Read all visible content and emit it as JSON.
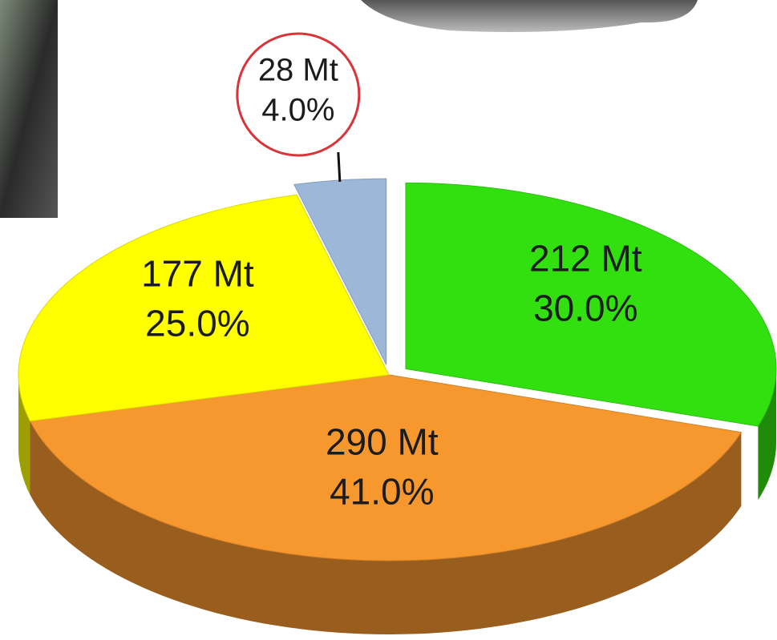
{
  "chart_data": {
    "type": "pie",
    "categories": [
      null,
      null,
      null,
      null
    ],
    "values": [
      4,
      30,
      41,
      25
    ],
    "value_labels": [
      "4.0%",
      "30.0%",
      "41.0%",
      "25.0%"
    ],
    "amounts": [
      28,
      212,
      290,
      177
    ],
    "amount_labels": [
      "28 Mt",
      "212 Mt",
      "290 Mt",
      "177 Mt"
    ],
    "colors": [
      "#9db7d8",
      "#33e00f",
      "#f7982f",
      "#ffff00"
    ]
  }
}
